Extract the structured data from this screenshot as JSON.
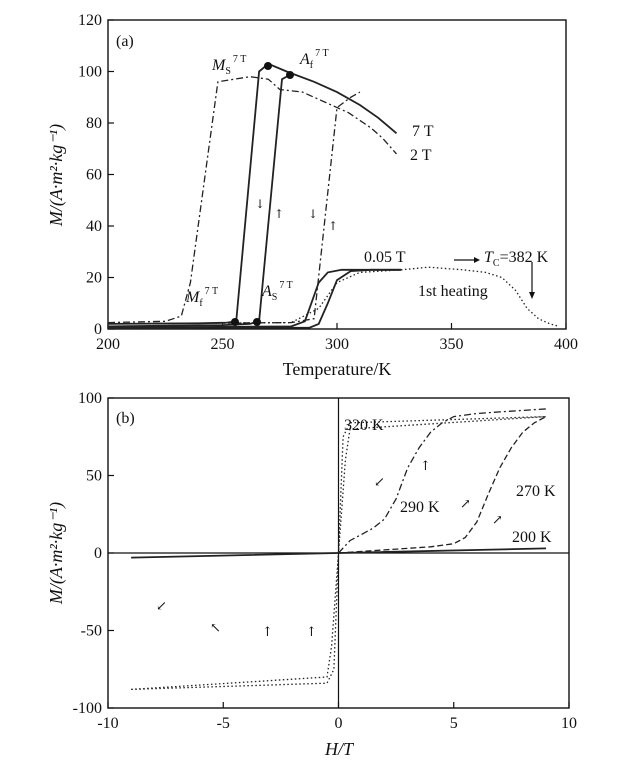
{
  "chart_data": [
    {
      "type": "line",
      "panel_label": "(a)",
      "xlabel": "Temperature/K",
      "ylabel": "M/(A·m²·kg⁻¹)",
      "xlim": [
        200,
        400
      ],
      "ylim": [
        0,
        120
      ],
      "xticks": [
        200,
        250,
        300,
        350,
        400
      ],
      "yticks": [
        0,
        20,
        40,
        60,
        80,
        100,
        120
      ],
      "grid": false,
      "series": [
        {
          "name": "7 T",
          "style": "solid",
          "x": [
            200,
            240,
            252,
            256,
            266,
            270,
            278,
            290,
            300,
            310,
            318,
            322,
            326
          ],
          "y": [
            2,
            2.2,
            2.5,
            3,
            100,
            103,
            100,
            96,
            92,
            87,
            82,
            79,
            76
          ]
        },
        {
          "name": "7 T",
          "style": "solid",
          "x": [
            200,
            250,
            262,
            266,
            276,
            280
          ],
          "y": [
            1,
            1.5,
            2,
            3,
            97,
            99
          ]
        },
        {
          "name": "2 T",
          "style": "dashdot",
          "x": [
            200,
            225,
            232,
            236,
            248,
            262,
            270,
            275,
            285,
            295,
            305,
            315,
            320,
            326
          ],
          "y": [
            2.5,
            3,
            5,
            18,
            96,
            98,
            97,
            93,
            92,
            88,
            84,
            78,
            74,
            68
          ]
        },
        {
          "name": "2 T",
          "style": "dashdot",
          "x": [
            200,
            280,
            290,
            300,
            306,
            310
          ],
          "y": [
            2,
            2.5,
            4,
            86,
            90,
            92
          ]
        },
        {
          "name": "0.05 T",
          "style": "solid",
          "x": [
            200,
            280,
            286,
            292,
            296,
            302,
            310,
            320,
            328
          ],
          "y": [
            0.5,
            1,
            3,
            18,
            22,
            23,
            23,
            23,
            23
          ]
        },
        {
          "name": "0.05 T",
          "style": "solid",
          "x": [
            200,
            288,
            292,
            296,
            300,
            306,
            315,
            328
          ],
          "y": [
            0.3,
            0.5,
            2,
            10,
            19,
            22.5,
            23,
            23
          ]
        },
        {
          "name": "1st heating",
          "style": "dotted",
          "x": [
            200,
            280,
            292,
            300,
            310,
            328,
            340,
            355,
            365,
            372,
            378,
            383,
            388,
            393,
            397
          ],
          "y": [
            2,
            2.5,
            8,
            18,
            22,
            23,
            24,
            23,
            22,
            20,
            15,
            8,
            4,
            2,
            1
          ]
        }
      ],
      "annotations": {
        "ms": "M",
        "ms_sub": "S",
        "ms_sup": "7 T",
        "af": "A",
        "af_sub": "f",
        "af_sup": "7 T",
        "mf": "M",
        "mf_sub": "f",
        "mf_sup": "7 T",
        "as": "A",
        "as_sub": "S",
        "as_sup": "7 T",
        "field_7t": "7 T",
        "field_2t": "2 T",
        "field_005t": "0.05 T",
        "tc": "T",
        "tc_sub": "C",
        "tc_value": "=382 K",
        "first_heating": "1st heating"
      }
    },
    {
      "type": "line",
      "panel_label": "(b)",
      "xlabel": "H/T",
      "ylabel": "M/(A·m²·kg⁻¹)",
      "xlim": [
        -10,
        10
      ],
      "ylim": [
        -100,
        100
      ],
      "xticks": [
        -10,
        -5,
        0,
        5,
        10
      ],
      "yticks": [
        -100,
        -50,
        0,
        50,
        100
      ],
      "grid": false,
      "series": [
        {
          "name": "320 K",
          "style": "dotted",
          "x": [
            -9,
            -0.5,
            -0.3,
            0,
            0.3,
            0.5,
            9,
            9,
            0.5,
            0.2,
            0,
            -0.2,
            -0.5,
            -9
          ],
          "y": [
            -88,
            -80,
            -60,
            0,
            60,
            80,
            88,
            88,
            84,
            75,
            0,
            -75,
            -84,
            -88
          ]
        },
        {
          "name": "290 K",
          "style": "dashdot",
          "x": [
            0,
            0.5,
            1,
            1.5,
            2,
            2.5,
            3,
            3.5,
            4,
            4.5,
            5,
            6,
            7,
            8,
            9
          ],
          "y": [
            0,
            8,
            12,
            16,
            22,
            35,
            55,
            68,
            78,
            84,
            88,
            90,
            91,
            92,
            93
          ]
        },
        {
          "name": "270 K",
          "style": "dashed",
          "x": [
            0,
            2,
            4,
            5,
            5.5,
            6,
            6.5,
            7,
            7.5,
            8,
            8.5,
            9
          ],
          "y": [
            0,
            2,
            4,
            6,
            10,
            20,
            38,
            55,
            68,
            78,
            84,
            88
          ]
        },
        {
          "name": "200 K",
          "style": "solid",
          "x": [
            -9,
            0,
            9
          ],
          "y": [
            -3,
            0,
            3
          ]
        }
      ],
      "annotations": {
        "t320": "320 K",
        "t290": "290 K",
        "t270": "270 K",
        "t200": "200 K"
      }
    }
  ]
}
